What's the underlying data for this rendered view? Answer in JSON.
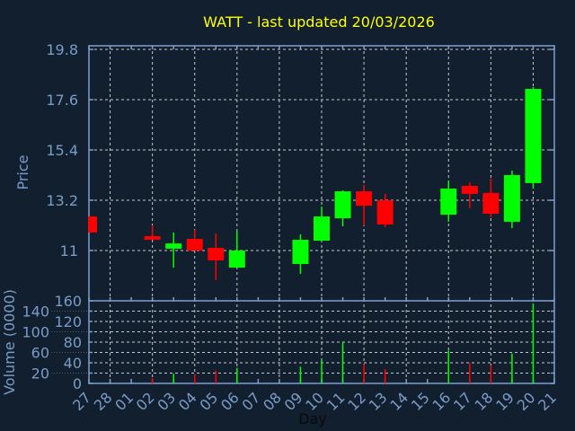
{
  "chart_data": {
    "type": "candlestick",
    "title": "WATT - last updated 20/03/2026",
    "colors": {
      "up": "#00ff00",
      "down": "#ff0000",
      "title": "#ffff00",
      "axis": "#7f9fcf",
      "background": "#111f2f"
    },
    "price_panel": {
      "ylabel": "Price",
      "ylim": [
        9.6,
        19.8
      ],
      "yticks": [
        "19.8",
        "17.6",
        "15.4",
        "13.2",
        "11"
      ],
      "ytick_values": [
        19.8,
        17.6,
        15.4,
        13.2,
        11.0
      ]
    },
    "volume_panel": {
      "ylabel": "Volume (0000)",
      "ylim": [
        0,
        160
      ],
      "yticks": [
        "160",
        "140",
        "120",
        "100",
        "80",
        "60",
        "40",
        "20",
        "0"
      ],
      "ytick_values": [
        160,
        140,
        120,
        100,
        80,
        60,
        40,
        20,
        0
      ]
    },
    "xlabel": "Day",
    "xticks": [
      "27",
      "28",
      "01",
      "02",
      "03",
      "04",
      "05",
      "06",
      "07",
      "08",
      "09",
      "10",
      "11",
      "12",
      "13",
      "14",
      "15",
      "16",
      "17",
      "18",
      "19",
      "20",
      "21"
    ],
    "candles": [
      {
        "day_index": 0,
        "open": 12.49,
        "high": 12.49,
        "low": 11.79,
        "close": 11.79,
        "volume": 0
      },
      {
        "day_index": 3,
        "open": 11.63,
        "high": 12.1,
        "low": 11.47,
        "close": 11.47,
        "volume": 10
      },
      {
        "day_index": 4,
        "open": 11.08,
        "high": 11.79,
        "low": 10.25,
        "close": 11.31,
        "volume": 18.6
      },
      {
        "day_index": 5,
        "open": 11.51,
        "high": 11.9,
        "low": 11.0,
        "close": 11.0,
        "volume": 16.8
      },
      {
        "day_index": 6,
        "open": 11.12,
        "high": 11.75,
        "low": 9.7,
        "close": 10.57,
        "volume": 24.9
      },
      {
        "day_index": 7,
        "open": 10.25,
        "high": 11.86,
        "low": 10.25,
        "close": 11.0,
        "volume": 30.1
      },
      {
        "day_index": 10,
        "open": 10.41,
        "high": 11.71,
        "low": 9.98,
        "close": 11.47,
        "volume": 32.5
      },
      {
        "day_index": 11,
        "open": 11.43,
        "high": 12.92,
        "low": 11.43,
        "close": 12.49,
        "volume": 44
      },
      {
        "day_index": 12,
        "open": 12.41,
        "high": 13.63,
        "low": 12.06,
        "close": 13.59,
        "volume": 78.8
      },
      {
        "day_index": 13,
        "open": 13.59,
        "high": 13.87,
        "low": 12.1,
        "close": 12.96,
        "volume": 37
      },
      {
        "day_index": 14,
        "open": 13.2,
        "high": 13.48,
        "low": 12.02,
        "close": 12.14,
        "volume": 27.5
      },
      {
        "day_index": 17,
        "open": 12.57,
        "high": 14.02,
        "low": 12.26,
        "close": 13.71,
        "volume": 63.8
      },
      {
        "day_index": 18,
        "open": 13.83,
        "high": 13.99,
        "low": 12.85,
        "close": 13.48,
        "volume": 39.4
      },
      {
        "day_index": 19,
        "open": 13.52,
        "high": 14.14,
        "low": 12.45,
        "close": 12.61,
        "volume": 34.8
      },
      {
        "day_index": 20,
        "open": 12.26,
        "high": 14.5,
        "low": 11.98,
        "close": 14.3,
        "volume": 58
      },
      {
        "day_index": 21,
        "open": 13.95,
        "high": 18.15,
        "low": 13.71,
        "close": 18.07,
        "volume": 154.8
      }
    ]
  }
}
